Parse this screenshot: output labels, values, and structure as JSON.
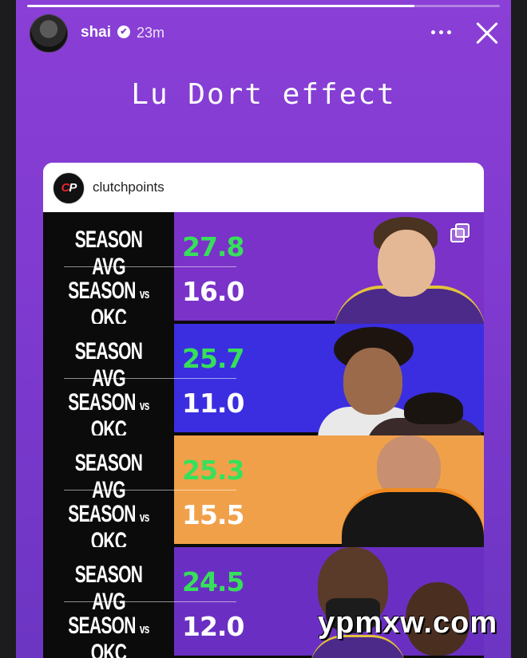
{
  "story": {
    "progress_fraction": 0.82,
    "username": "shai",
    "verified_glyph": "✔",
    "timestamp": "23m",
    "caption": "Lu Dort effect",
    "colors": {
      "background": "#7f3ad0"
    }
  },
  "post": {
    "author": "clutchpoints",
    "logo_text_a": "C",
    "logo_text_b": "P",
    "rows": [
      {
        "label_avg": "SEASON AVG",
        "label_okc_a": "SEASON ",
        "label_okc_vs": "vs",
        "label_okc_b": " OKC",
        "avg": "27.8",
        "vs_okc": "16.0",
        "panel_color": "#7a32c8"
      },
      {
        "label_avg": "SEASON AVG",
        "label_okc_a": "SEASON ",
        "label_okc_vs": "vs",
        "label_okc_b": " OKC",
        "avg": "25.7",
        "vs_okc": "11.0",
        "panel_color": "#3a2ee0"
      },
      {
        "label_avg": "SEASON AVG",
        "label_okc_a": "SEASON ",
        "label_okc_vs": "vs",
        "label_okc_b": " OKC",
        "avg": "25.3",
        "vs_okc": "15.5",
        "panel_color": "#f1a04a"
      },
      {
        "label_avg": "SEASON AVG",
        "label_okc_a": "SEASON ",
        "label_okc_vs": "vs",
        "label_okc_b": " OKC",
        "avg": "24.5",
        "vs_okc": "12.0",
        "panel_color": "#6a2fc2"
      }
    ]
  },
  "icons": {
    "more": "more-options-icon",
    "close": "close-icon",
    "multi": "multi-image-icon"
  },
  "watermark": "ypmxw.com"
}
